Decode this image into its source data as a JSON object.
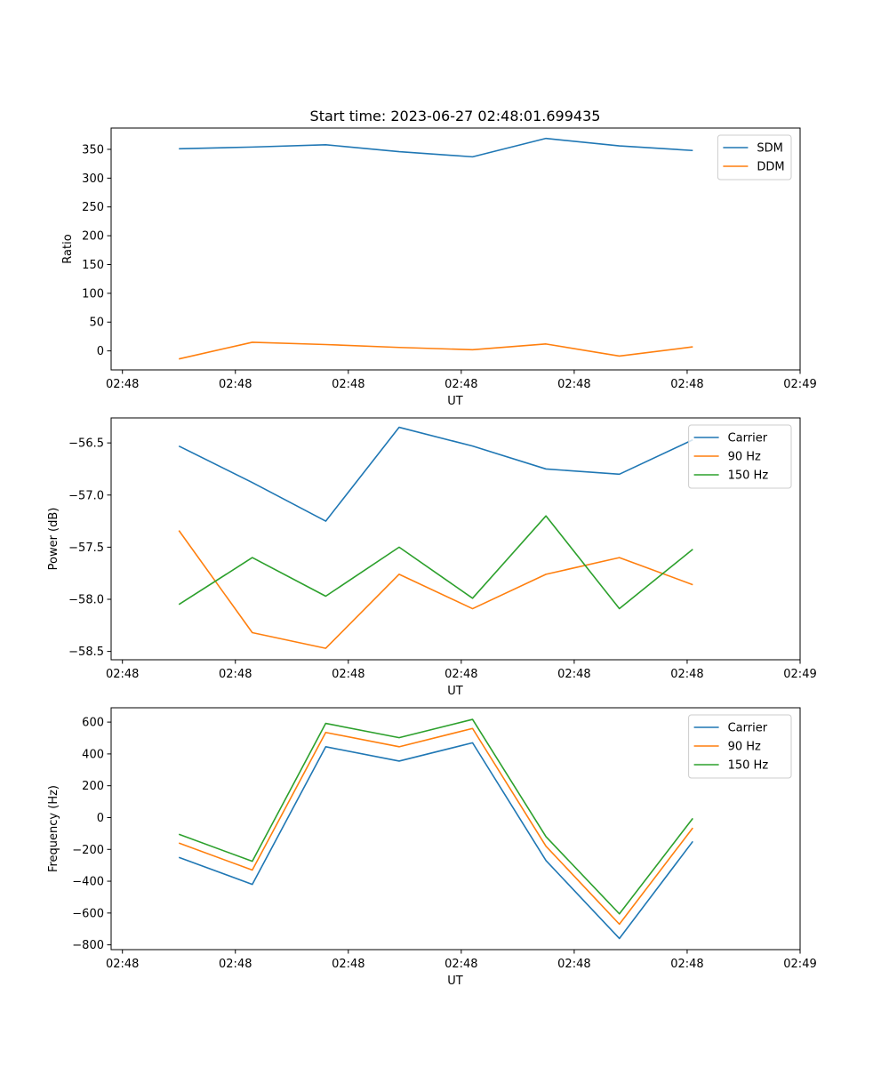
{
  "figure": {
    "title": "Start time: 2023-06-27 02:48:01.699435"
  },
  "chart_data": [
    {
      "type": "line",
      "title": "Start time: 2023-06-27 02:48:01.699435",
      "xlabel": "UT",
      "ylabel": "Ratio",
      "x_tick_labels": [
        "02:48",
        "02:48",
        "02:48",
        "02:48",
        "02:48",
        "02:48",
        "02:49"
      ],
      "x_ticks": [
        0,
        1,
        2,
        3,
        4,
        5,
        6
      ],
      "xlim": [
        -0.1,
        6.0
      ],
      "x": [
        0.5,
        1.15,
        1.8,
        2.45,
        3.1,
        3.75,
        4.4,
        5.05
      ],
      "ylim": [
        -33,
        387
      ],
      "yticks": [
        0,
        50,
        100,
        150,
        200,
        250,
        300,
        350
      ],
      "grid": false,
      "legend_position": "upper-right",
      "series": [
        {
          "name": "SDM",
          "color": "#1f77b4",
          "values": [
            351,
            354,
            358,
            346,
            337,
            369,
            356,
            348
          ]
        },
        {
          "name": "DDM",
          "color": "#ff7f0e",
          "values": [
            -14,
            15,
            11,
            6,
            2,
            12,
            -9,
            7
          ]
        }
      ]
    },
    {
      "type": "line",
      "title": "",
      "xlabel": "UT",
      "ylabel": "Power (dB)",
      "x_tick_labels": [
        "02:48",
        "02:48",
        "02:48",
        "02:48",
        "02:48",
        "02:48",
        "02:49"
      ],
      "x_ticks": [
        0,
        1,
        2,
        3,
        4,
        5,
        6
      ],
      "xlim": [
        -0.1,
        6.0
      ],
      "x": [
        0.5,
        1.15,
        1.8,
        2.45,
        3.1,
        3.75,
        4.4,
        5.05
      ],
      "ylim": [
        -58.58,
        -56.26
      ],
      "yticks": [
        -58.5,
        -58.0,
        -57.5,
        -57.0,
        -56.5
      ],
      "ytick_labels": [
        "−58.5",
        "−58.0",
        "−57.5",
        "−57.0",
        "−56.5"
      ],
      "grid": false,
      "legend_position": "upper-right",
      "series": [
        {
          "name": "Carrier",
          "color": "#1f77b4",
          "values": [
            -56.53,
            -56.88,
            -57.25,
            -56.35,
            -56.53,
            -56.75,
            -56.8,
            -56.47
          ]
        },
        {
          "name": "90 Hz",
          "color": "#ff7f0e",
          "values": [
            -57.34,
            -58.32,
            -58.47,
            -57.76,
            -58.09,
            -57.76,
            -57.6,
            -57.86
          ]
        },
        {
          "name": "150 Hz",
          "color": "#2ca02c",
          "values": [
            -58.05,
            -57.6,
            -57.97,
            -57.5,
            -57.99,
            -57.2,
            -58.09,
            -57.52
          ]
        }
      ]
    },
    {
      "type": "line",
      "title": "",
      "xlabel": "UT",
      "ylabel": "Frequency (Hz)",
      "x_tick_labels": [
        "02:48",
        "02:48",
        "02:48",
        "02:48",
        "02:48",
        "02:48",
        "02:49"
      ],
      "x_ticks": [
        0,
        1,
        2,
        3,
        4,
        5,
        6
      ],
      "xlim": [
        -0.1,
        6.0
      ],
      "x": [
        0.5,
        1.15,
        1.8,
        2.45,
        3.1,
        3.75,
        4.4,
        5.05
      ],
      "ylim": [
        -830,
        690
      ],
      "yticks": [
        -800,
        -600,
        -400,
        -200,
        0,
        200,
        400,
        600
      ],
      "ytick_labels": [
        "−800",
        "−600",
        "−400",
        "−200",
        "0",
        "200",
        "400",
        "600"
      ],
      "grid": false,
      "legend_position": "upper-right",
      "series": [
        {
          "name": "Carrier",
          "color": "#1f77b4",
          "values": [
            -250,
            -420,
            445,
            355,
            470,
            -270,
            -760,
            -150
          ]
        },
        {
          "name": "90 Hz",
          "color": "#ff7f0e",
          "values": [
            -160,
            -330,
            535,
            445,
            560,
            -180,
            -670,
            -65
          ]
        },
        {
          "name": "150 Hz",
          "color": "#2ca02c",
          "values": [
            -105,
            -275,
            592,
            502,
            617,
            -120,
            -605,
            -5
          ]
        }
      ]
    }
  ]
}
